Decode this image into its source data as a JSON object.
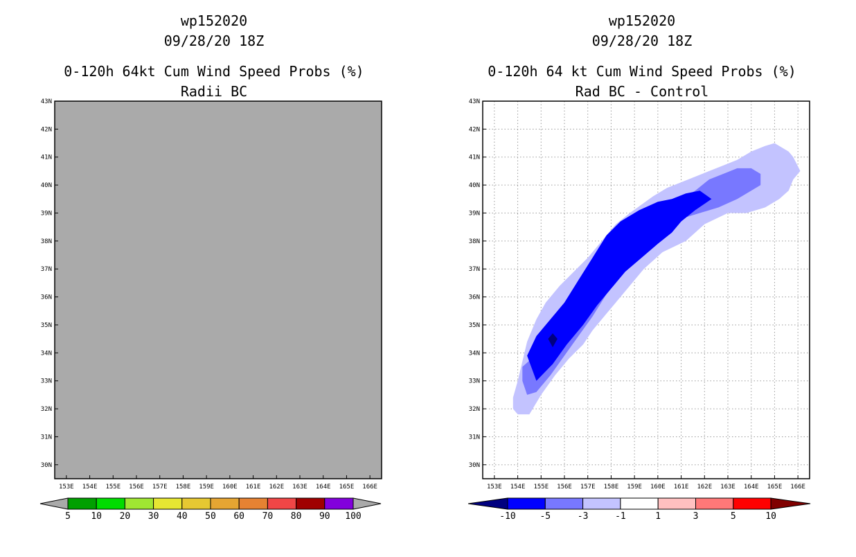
{
  "colors": {
    "background": "#ffffff",
    "no_data_fill": "#aaaaaa",
    "grid": "#9a9a9a"
  },
  "chart_data": [
    {
      "type": "heatmap",
      "title_lines": [
        "wp152020",
        "09/28/20 18Z",
        "0-120h 64kt Cum Wind Speed Probs (%)",
        "Radii BC"
      ],
      "x_tick_labels": [
        "153E",
        "154E",
        "155E",
        "156E",
        "157E",
        "158E",
        "159E",
        "160E",
        "161E",
        "162E",
        "163E",
        "164E",
        "165E",
        "166E"
      ],
      "y_tick_labels": [
        "30N",
        "31N",
        "32N",
        "33N",
        "34N",
        "35N",
        "36N",
        "37N",
        "38N",
        "39N",
        "40N",
        "41N",
        "42N",
        "43N"
      ],
      "xlim": [
        152.5,
        166.5
      ],
      "ylim": [
        29.5,
        43
      ],
      "grid": false,
      "field": "uniform gray (no probability contours)",
      "colorbar": {
        "labels": [
          "5",
          "10",
          "20",
          "30",
          "40",
          "50",
          "60",
          "70",
          "80",
          "90",
          "100"
        ],
        "colors": [
          "#00a000",
          "#00dc00",
          "#a0e632",
          "#e6e632",
          "#e6c832",
          "#e6a532",
          "#e68232",
          "#f04646",
          "#a00000",
          "#8200dc"
        ],
        "end_colors": [
          "#aaaaaa",
          "#aaaaaa"
        ]
      }
    },
    {
      "type": "heatmap",
      "title_lines": [
        "wp152020",
        "09/28/20 18Z",
        "0-120h 64 kt Cum Wind Speed Probs (%)",
        "Rad BC - Control"
      ],
      "x_tick_labels": [
        "153E",
        "154E",
        "155E",
        "156E",
        "157E",
        "158E",
        "159E",
        "160E",
        "161E",
        "162E",
        "163E",
        "164E",
        "165E",
        "166E"
      ],
      "y_tick_labels": [
        "30N",
        "31N",
        "32N",
        "33N",
        "34N",
        "35N",
        "36N",
        "37N",
        "38N",
        "39N",
        "40N",
        "41N",
        "42N",
        "43N"
      ],
      "xlim": [
        152.5,
        166.5
      ],
      "ylim": [
        29.5,
        43
      ],
      "grid": true,
      "contours": [
        {
          "level": "-3 to -1",
          "color": "#c3c3ff",
          "lon": [
            154.0,
            153.8,
            153.8,
            154.0,
            154.5,
            155.0,
            155.6,
            156.2,
            156.8,
            157.2,
            157.8,
            158.6,
            159.4,
            160.2,
            161.2,
            162.0,
            163.0,
            163.8,
            164.6,
            165.2,
            165.6,
            165.8,
            166.1,
            165.8,
            165.6,
            165.0,
            164.6,
            164.0,
            163.4,
            162.8,
            162.2,
            161.6,
            161.0,
            160.4,
            159.8,
            159.3,
            158.8,
            158.2,
            157.6,
            157.0,
            156.4,
            155.8,
            155.2,
            154.8,
            154.6,
            154.4
          ],
          "lat": [
            33.0,
            32.4,
            32.0,
            31.8,
            31.8,
            32.5,
            33.2,
            33.8,
            34.3,
            34.8,
            35.4,
            36.2,
            37.0,
            37.6,
            38.0,
            38.6,
            39.0,
            39.0,
            39.2,
            39.5,
            39.8,
            40.2,
            40.5,
            41.0,
            41.2,
            41.5,
            41.4,
            41.2,
            40.9,
            40.7,
            40.5,
            40.3,
            40.1,
            39.9,
            39.6,
            39.3,
            39.0,
            38.6,
            38.0,
            37.4,
            36.9,
            36.4,
            35.8,
            35.2,
            34.8,
            34.4
          ]
        },
        {
          "level": "-5 to -3",
          "color": "#7878ff",
          "lon": [
            154.2,
            154.2,
            154.4,
            154.8,
            155.4,
            156.0,
            156.6,
            157.2,
            157.8,
            158.6,
            159.4,
            160.2,
            161.0,
            161.8,
            162.6,
            163.4,
            164.0,
            164.4,
            164.4,
            164.0,
            163.4,
            162.8,
            162.2,
            161.6,
            161.0,
            160.4,
            159.8,
            159.2,
            158.6,
            158.0,
            157.4,
            156.8,
            156.2,
            155.6,
            155.0,
            154.6
          ],
          "lat": [
            33.5,
            33.0,
            32.5,
            32.6,
            33.2,
            33.9,
            34.6,
            35.3,
            36.1,
            36.9,
            37.5,
            38.2,
            38.8,
            39.0,
            39.2,
            39.5,
            39.8,
            40.0,
            40.4,
            40.6,
            40.6,
            40.4,
            40.2,
            39.8,
            39.5,
            39.1,
            38.7,
            38.2,
            37.6,
            37.0,
            36.4,
            35.8,
            35.2,
            34.7,
            34.2,
            33.8
          ]
        },
        {
          "level": "-10 to -5",
          "color": "#0000ff",
          "lon": [
            154.8,
            154.4,
            154.8,
            155.4,
            156.0,
            156.6,
            157.2,
            157.8,
            158.4,
            159.2,
            160.0,
            160.6,
            161.2,
            161.8,
            162.3,
            161.6,
            161.0,
            160.6,
            160.0,
            159.3,
            158.6,
            158.0,
            157.4,
            156.8,
            156.1,
            155.5
          ],
          "lat": [
            33.0,
            33.9,
            34.6,
            35.2,
            35.8,
            36.6,
            37.4,
            38.2,
            38.7,
            39.1,
            39.4,
            39.5,
            39.7,
            39.8,
            39.5,
            39.1,
            38.7,
            38.3,
            37.9,
            37.4,
            36.9,
            36.3,
            35.7,
            35.0,
            34.3,
            33.6
          ]
        },
        {
          "level": "< -10",
          "color": "#000080",
          "lon": [
            155.3,
            155.5,
            155.7,
            155.5
          ],
          "lat": [
            34.5,
            34.7,
            34.5,
            34.2
          ]
        }
      ],
      "colorbar": {
        "labels": [
          "-10",
          "-5",
          "-3",
          "-1",
          "1",
          "3",
          "5",
          "10"
        ],
        "colors": [
          "#0000ff",
          "#7878ff",
          "#c3c3ff",
          "#ffffff",
          "#ffc0c0",
          "#ff7878",
          "#ff0000"
        ],
        "end_colors": [
          "#000080",
          "#800000"
        ]
      }
    }
  ]
}
